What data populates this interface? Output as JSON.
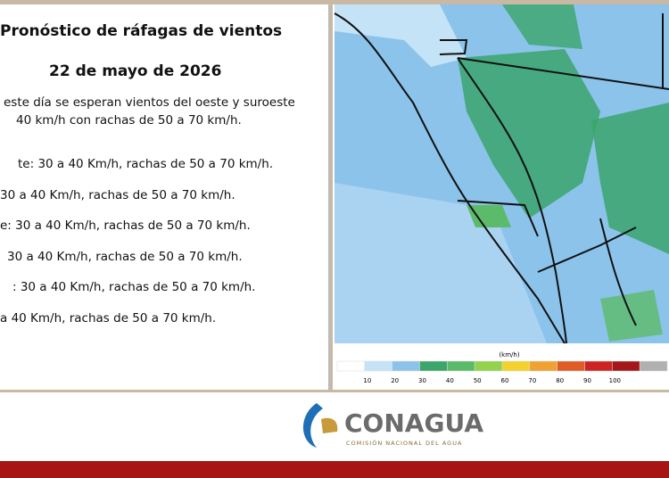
{
  "header": {
    "title": "Pronóstico de ráfagas de vientos",
    "date": "22 de mayo de 2026"
  },
  "intro": [
    "este día se esperan vientos del oeste y suroeste",
    "40 km/h con rachas de 50 a 70 km/h."
  ],
  "items": [
    "te:  30 a 40 Km/h, rachas de 50 a 70 km/h.",
    "30 a 40 Km/h, rachas de 50 a 70 km/h.",
    "e: 30 a 40 Km/h, rachas de 50 a 70 km/h.",
    "30 a 40 Km/h, rachas de 50 a 70 km/h.",
    ":  30 a 40 Km/h, rachas de 50 a 70 km/h.",
    "a 40 Km/h, rachas de 50 a 70 km/h."
  ],
  "legend": {
    "unit": "(km/h)",
    "ticks": [
      10,
      20,
      30,
      40,
      50,
      60,
      70,
      80,
      90,
      100
    ],
    "colors": [
      "#ffffff",
      "#c4e3f7",
      "#8cc3ea",
      "#3ba56c",
      "#5cbb6a",
      "#93d14f",
      "#f3d22e",
      "#efa233",
      "#e05b26",
      "#cf2323",
      "#a3171b",
      "#b0b0b0"
    ]
  },
  "logo": {
    "name": "CONAGUA",
    "subtitle": "COMISIÓN NACIONAL DEL AGUA"
  }
}
